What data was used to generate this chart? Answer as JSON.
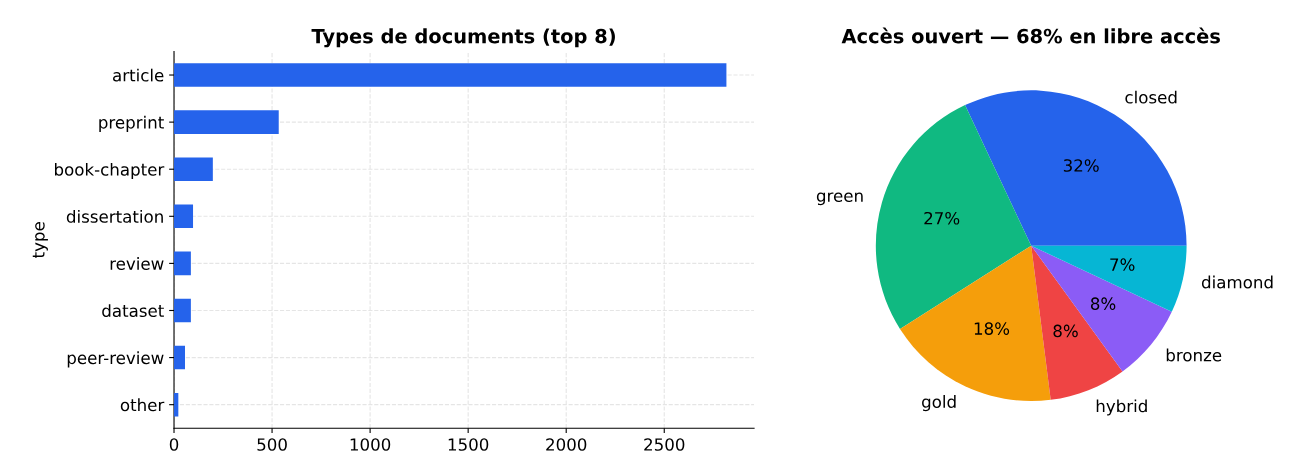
{
  "chart_data": [
    {
      "type": "bar",
      "orientation": "horizontal",
      "title": "Types de documents (top 8)",
      "ylabel": "type",
      "categories": [
        "article",
        "preprint",
        "book-chapter",
        "dissertation",
        "review",
        "dataset",
        "peer-review",
        "other"
      ],
      "values": [
        2817,
        534,
        198,
        97,
        86,
        86,
        56,
        22
      ],
      "color": "#2563eb",
      "xlim": [
        0,
        2958
      ],
      "xticks": [
        0,
        500,
        1000,
        1500,
        2000,
        2500
      ],
      "grid": true
    },
    {
      "type": "pie",
      "title": "Accès ouvert — 68% en libre accès",
      "categories": [
        "closed",
        "green",
        "gold",
        "hybrid",
        "bronze",
        "diamond"
      ],
      "values": [
        32,
        27,
        18,
        8,
        8,
        7
      ],
      "colors": [
        "#2563eb",
        "#10b981",
        "#f59e0b",
        "#ef4444",
        "#8b5cf6",
        "#06b6d4"
      ],
      "value_labels": [
        "32%",
        "27%",
        "18%",
        "8%",
        "8%",
        "7%"
      ]
    }
  ]
}
